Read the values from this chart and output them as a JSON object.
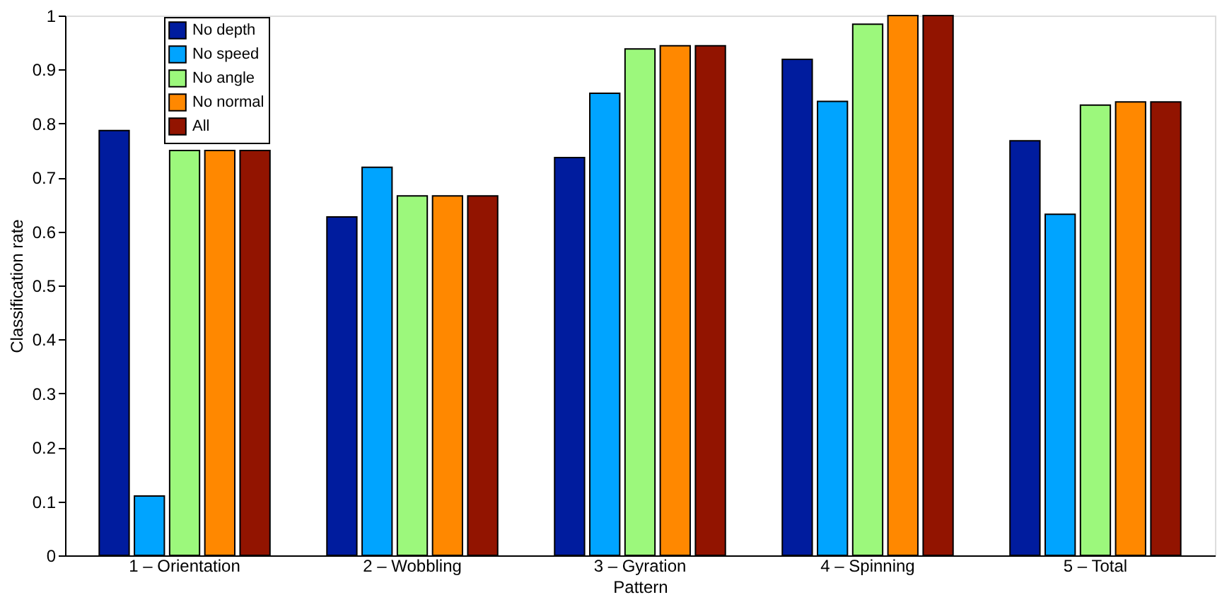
{
  "chart_data": {
    "type": "bar",
    "xlabel": "Pattern",
    "ylabel": "Classification rate",
    "categories": [
      "1 – Orientation",
      "2 – Wobbling",
      "3 – Gyration",
      "4 – Spinning",
      "5 – Total"
    ],
    "series": [
      {
        "name": "No depth",
        "color": "#001c9e",
        "values": [
          0.787,
          0.627,
          0.737,
          0.919,
          0.768
        ]
      },
      {
        "name": "No speed",
        "color": "#00a4ff",
        "values": [
          0.11,
          0.719,
          0.856,
          0.841,
          0.632
        ]
      },
      {
        "name": "No angle",
        "color": "#9cf87c",
        "values": [
          0.75,
          0.666,
          0.938,
          0.984,
          0.834
        ]
      },
      {
        "name": "No normal",
        "color": "#ff8800",
        "values": [
          0.75,
          0.666,
          0.944,
          1.0,
          0.84
        ]
      },
      {
        "name": "All",
        "color": "#921400",
        "values": [
          0.75,
          0.666,
          0.944,
          1.0,
          0.84
        ]
      }
    ],
    "ylim": [
      0,
      1
    ],
    "yticks": [
      0,
      0.1,
      0.2,
      0.3,
      0.4,
      0.5,
      0.6,
      0.7,
      0.8,
      0.9,
      1
    ],
    "grid": false,
    "legend": "top left"
  }
}
